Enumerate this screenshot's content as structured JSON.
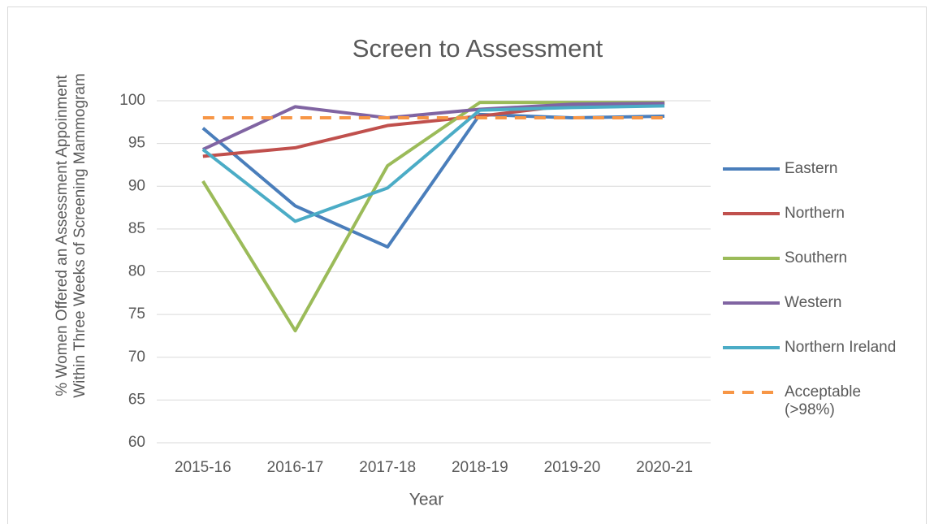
{
  "chart_data": {
    "type": "line",
    "title": "Screen to Assessment",
    "x_label": "Year",
    "y_label": "% Women Offered an Assessment Appoinment Within Three Weeks of Screening Mammogram",
    "categories": [
      "2015-16",
      "2016-17",
      "2017-18",
      "2018-19",
      "2019-20",
      "2020-21"
    ],
    "series": [
      {
        "name": "Eastern",
        "color": "#4a7ebb",
        "values": [
          96.8,
          87.7,
          82.9,
          98.4,
          98.0,
          98.2
        ]
      },
      {
        "name": "Northern",
        "color": "#c0504d",
        "values": [
          93.5,
          94.5,
          97.1,
          98.2,
          99.5,
          99.7
        ]
      },
      {
        "name": "Southern",
        "color": "#9bbb59",
        "values": [
          90.6,
          73.1,
          92.4,
          99.8,
          99.8,
          99.8
        ]
      },
      {
        "name": "Western",
        "color": "#8064a2",
        "values": [
          94.3,
          99.3,
          98.0,
          99.0,
          99.6,
          99.7
        ]
      },
      {
        "name": "Northern Ireland",
        "color": "#4bacc6",
        "values": [
          94.3,
          85.9,
          89.8,
          98.9,
          99.2,
          99.4
        ]
      },
      {
        "name": "Acceptable (>98%)",
        "color": "#f79646",
        "dashed": true,
        "values": [
          98,
          98,
          98,
          98,
          98,
          98
        ]
      }
    ],
    "ylim": [
      60,
      100
    ],
    "yticks": [
      60,
      65,
      70,
      75,
      80,
      85,
      90,
      95,
      100
    ],
    "grid": true,
    "legend": "right"
  }
}
